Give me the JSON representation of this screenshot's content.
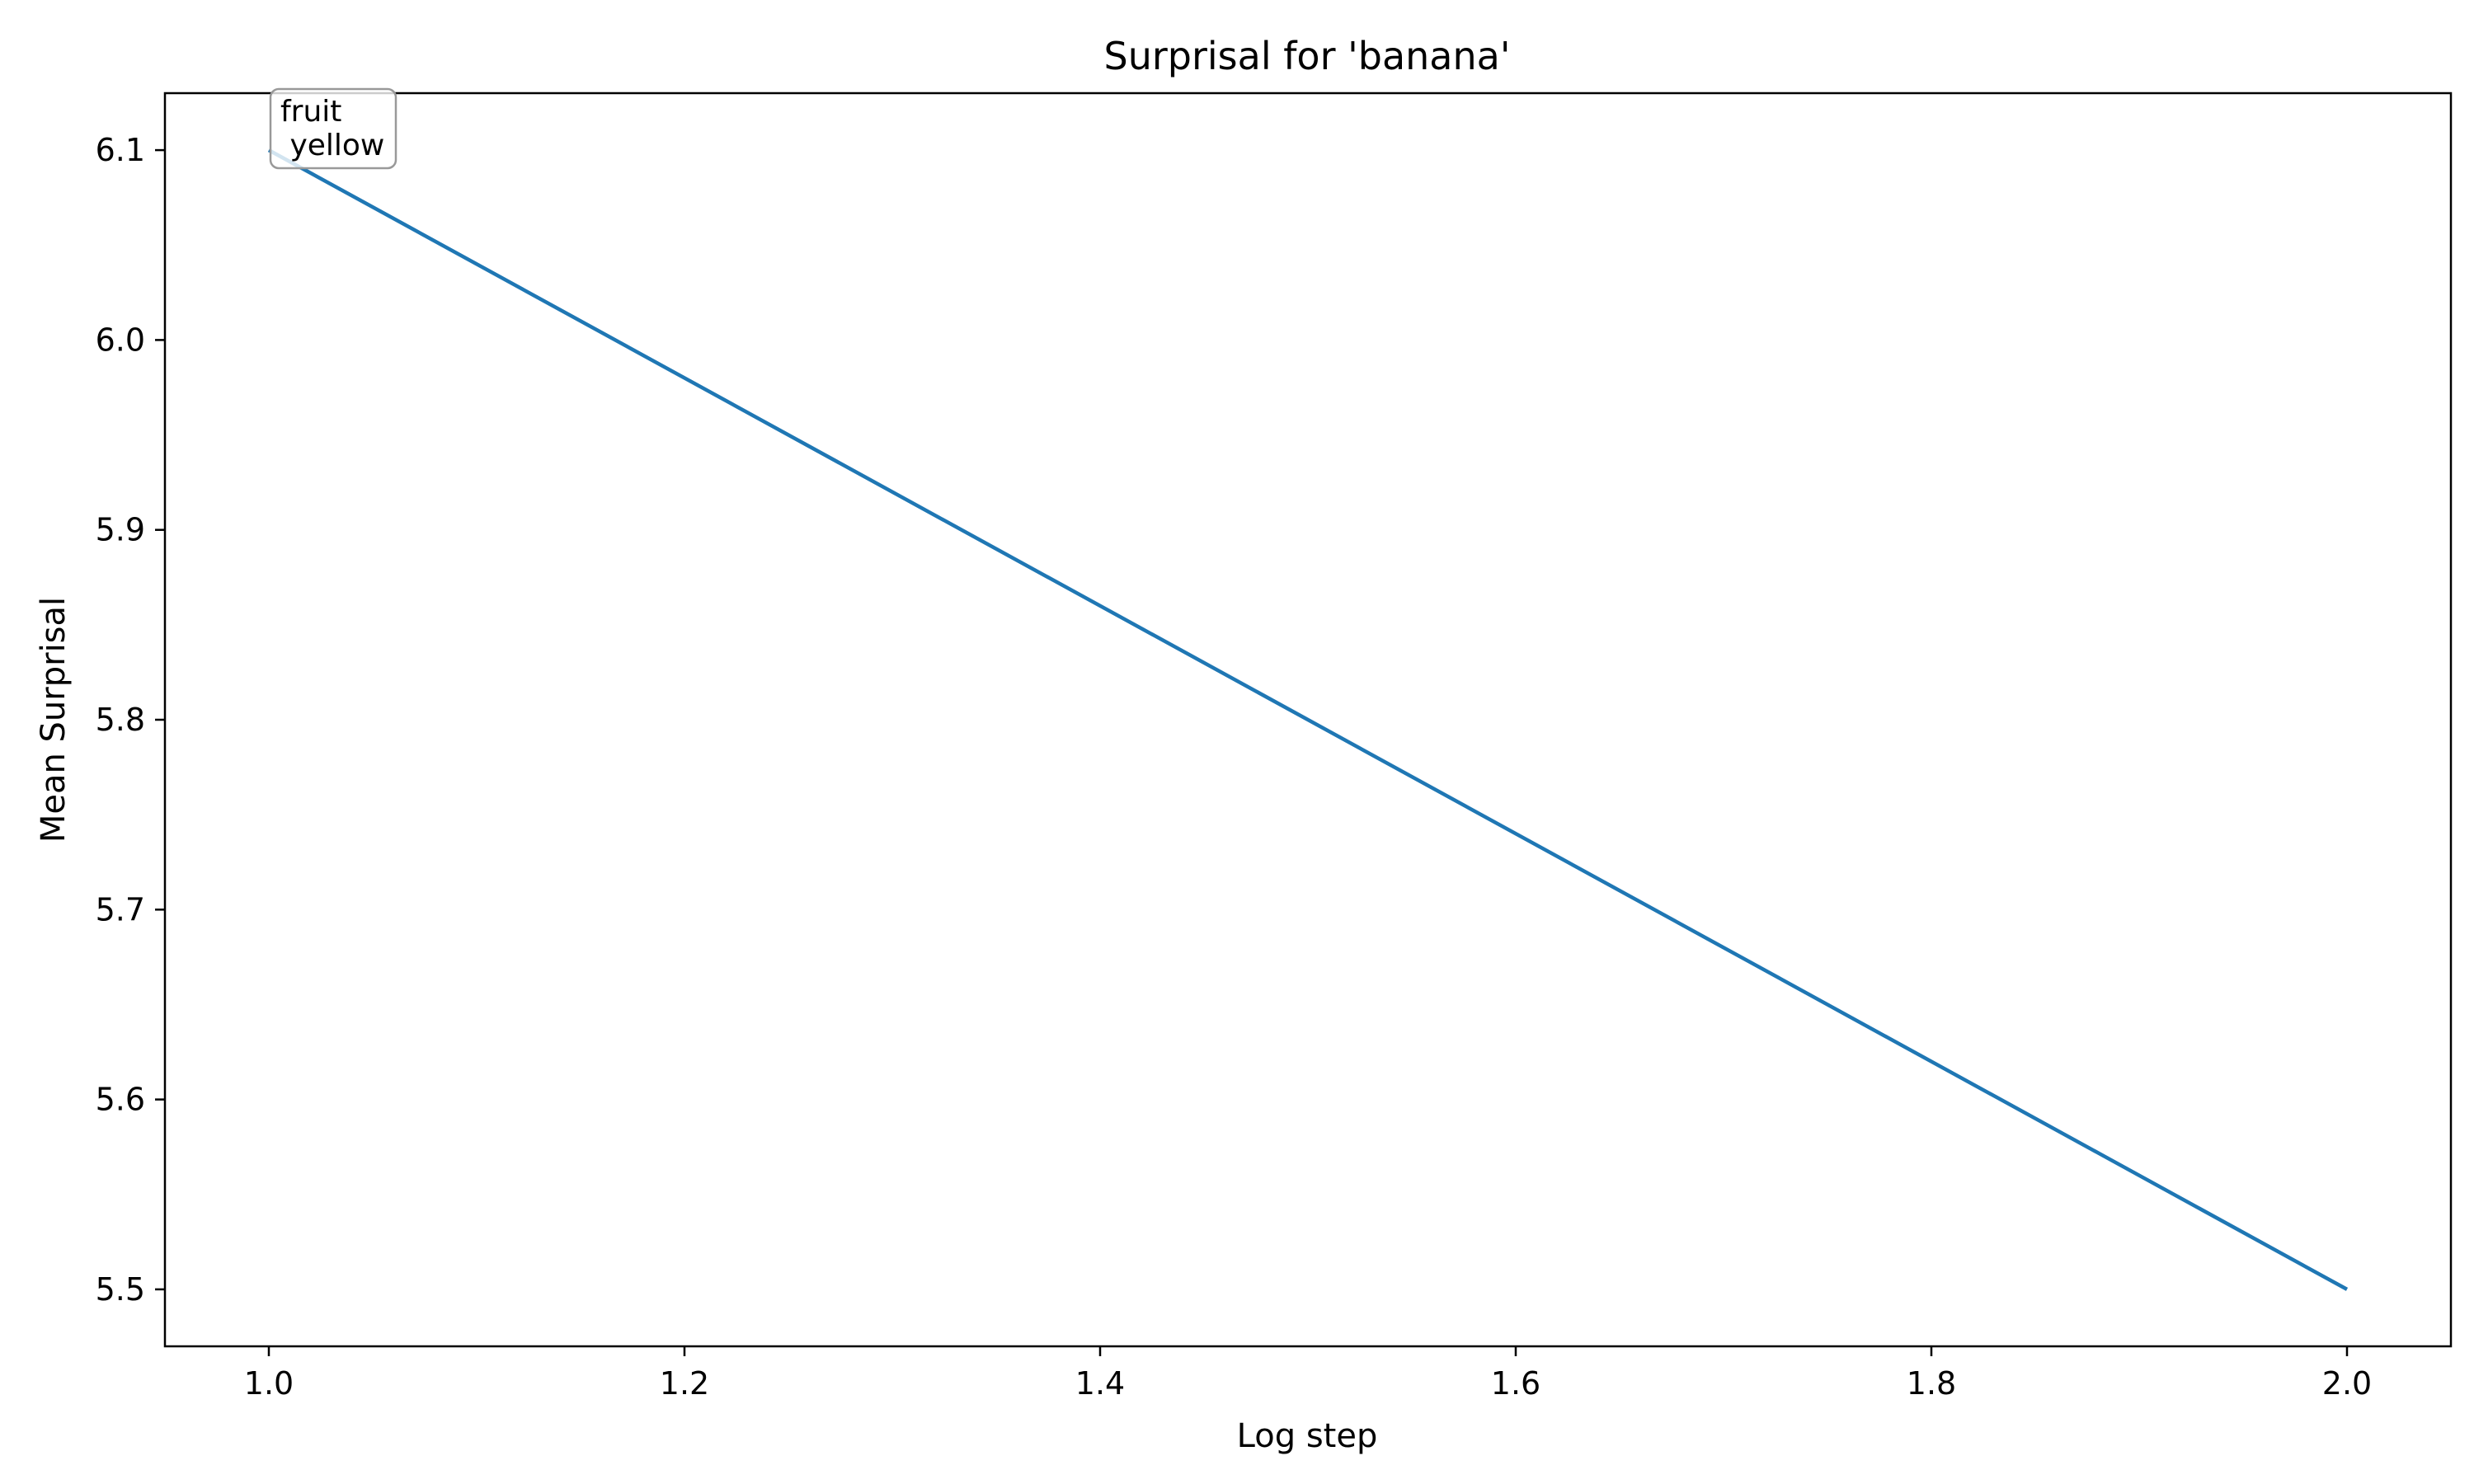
{
  "chart_data": {
    "type": "line",
    "title": "Surprisal for 'banana'",
    "xlabel": "Log step",
    "ylabel": "Mean Surprisal",
    "xlim": [
      0.95,
      2.05
    ],
    "ylim": [
      5.47,
      6.13
    ],
    "x_ticks": [
      "1.0",
      "1.2",
      "1.4",
      "1.6",
      "1.8",
      "2.0"
    ],
    "y_ticks": [
      "5.5",
      "5.6",
      "5.7",
      "5.8",
      "5.9",
      "6.0",
      "6.1"
    ],
    "grid": false,
    "legend": "none",
    "series": [
      {
        "color": "#1f77b4",
        "x": [
          1.0,
          2.0
        ],
        "y": [
          6.1,
          5.5
        ]
      }
    ],
    "annotations": [
      {
        "x": 1.0,
        "y": 6.1,
        "lines": [
          "fruit",
          " yellow"
        ]
      }
    ]
  }
}
